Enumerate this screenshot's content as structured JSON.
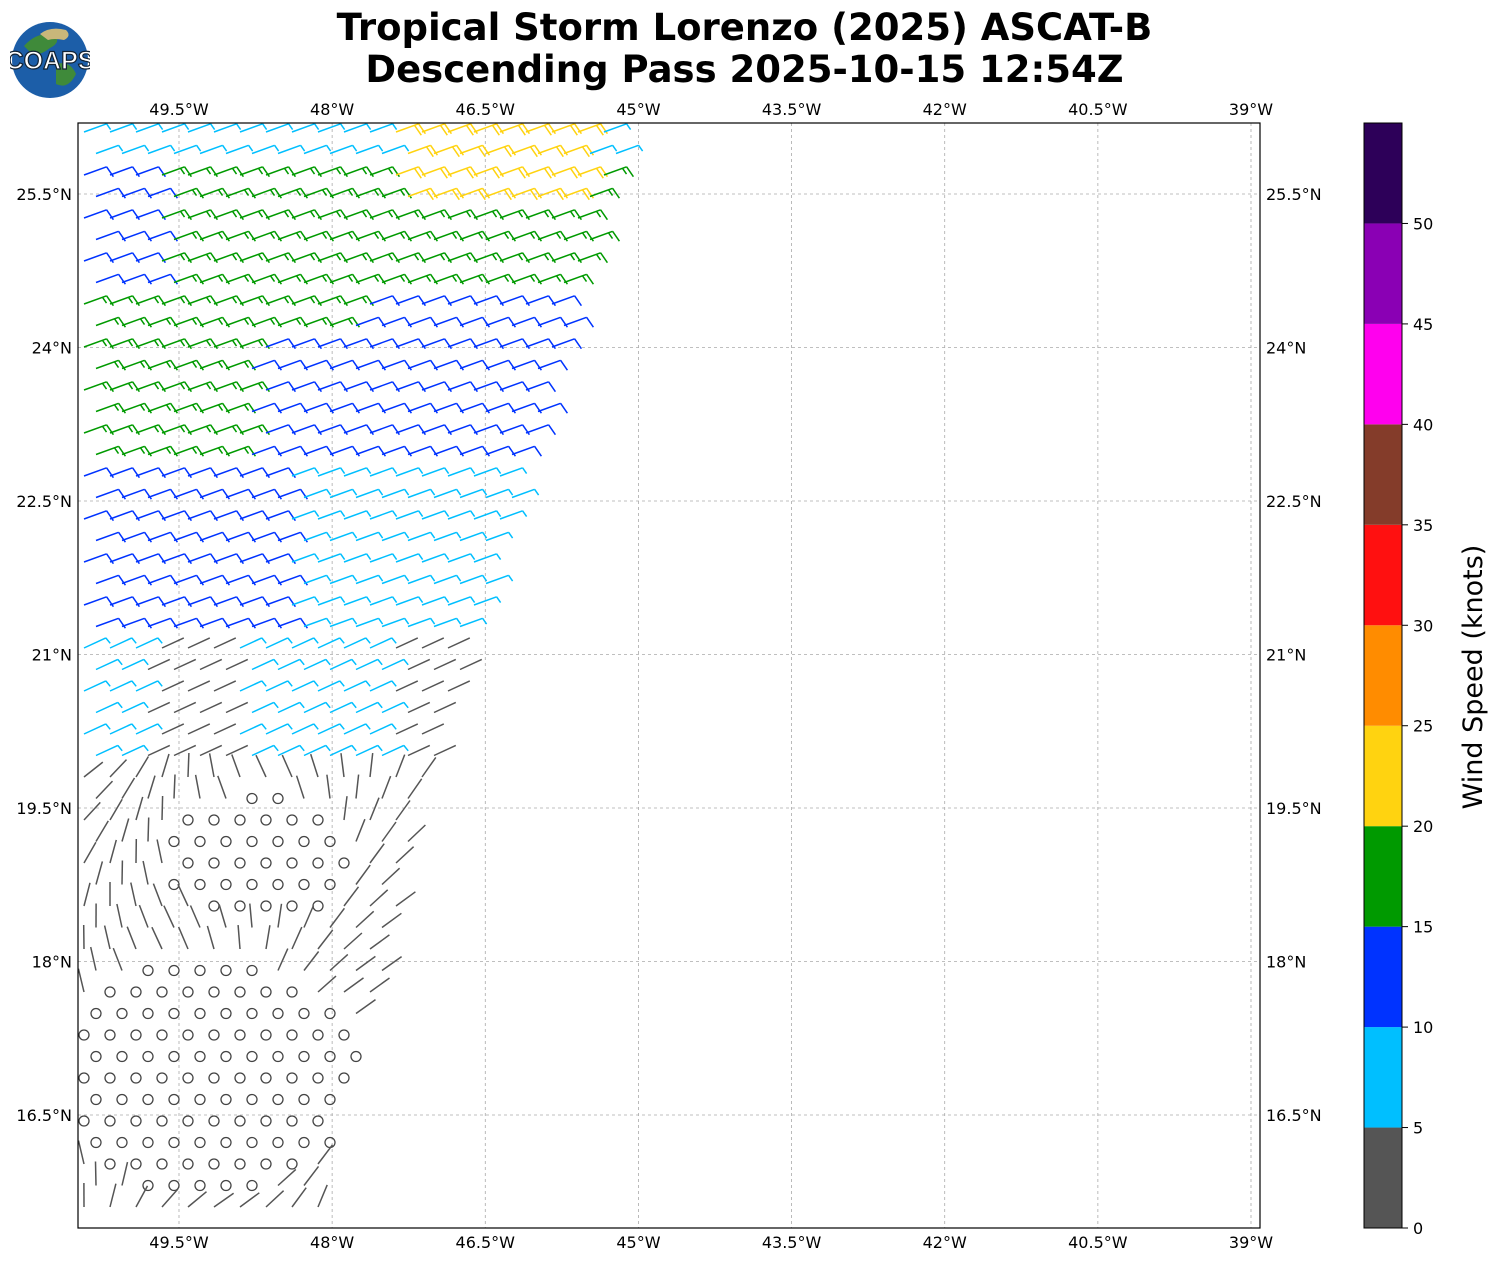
{
  "header": {
    "title_line1": "Tropical Storm Lorenzo (2025) ASCAT-B",
    "title_line2": "Descending Pass 2025-10-15 12:54Z",
    "logo_text": "COAPS"
  },
  "map": {
    "lon_ticks": [
      "49.5°W",
      "48°W",
      "46.5°W",
      "45°W",
      "43.5°W",
      "42°W",
      "40.5°W",
      "39°W"
    ],
    "lat_ticks": [
      "25.5°N",
      "24°N",
      "22.5°N",
      "21°N",
      "19.5°N",
      "18°N",
      "16.5°N"
    ],
    "lon_range_deg_east": [
      -50.5,
      -38.9
    ],
    "lat_range_deg_north": [
      15.3,
      26.1
    ],
    "gridlines": true,
    "wind_field_symbol": "wind-barbs"
  },
  "colorbar": {
    "label": "Wind Speed (knots)",
    "tick_labels": [
      "0",
      "5",
      "10",
      "15",
      "20",
      "25",
      "30",
      "35",
      "40",
      "45",
      "50"
    ],
    "bins": [
      {
        "from": 0,
        "to": 5,
        "color": "#555555"
      },
      {
        "from": 5,
        "to": 10,
        "color": "#00bfff"
      },
      {
        "from": 10,
        "to": 15,
        "color": "#0033ff"
      },
      {
        "from": 15,
        "to": 20,
        "color": "#009a00"
      },
      {
        "from": 20,
        "to": 25,
        "color": "#ffd310"
      },
      {
        "from": 25,
        "to": 30,
        "color": "#ff8c00"
      },
      {
        "from": 30,
        "to": 35,
        "color": "#ff1010"
      },
      {
        "from": 35,
        "to": 40,
        "color": "#843c2a"
      },
      {
        "from": 40,
        "to": 45,
        "color": "#ff00ee"
      },
      {
        "from": 45,
        "to": 50,
        "color": "#8a00b4"
      },
      {
        "from": 50,
        "to": 55,
        "color": "#2d0059"
      }
    ]
  }
}
